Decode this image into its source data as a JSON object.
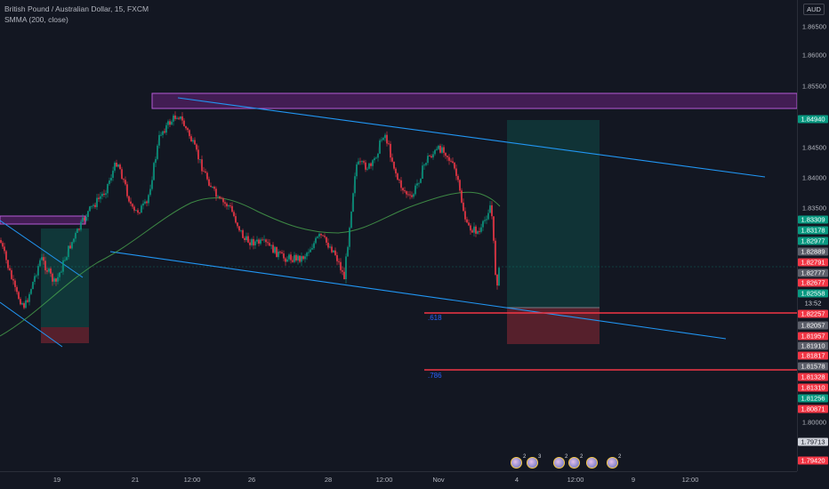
{
  "legend": {
    "symbol": "British Pound / Australian Dollar, 15, FXCM",
    "indicator": "SMMA (200, close)"
  },
  "price_axis": {
    "currency": "AUD",
    "ticks": [
      "1.86500",
      "1.86000",
      "1.85500",
      "1.84500",
      "1.84000",
      "1.83500",
      "1.80000"
    ]
  },
  "price_tags": [
    {
      "value": "1.84940",
      "color": "green"
    },
    {
      "value": "1.83309",
      "color": "green"
    },
    {
      "value": "1.83178",
      "color": "green"
    },
    {
      "value": "1.82977",
      "color": "green"
    },
    {
      "value": "1.82889",
      "color": "gray"
    },
    {
      "value": "1.82791",
      "color": "red"
    },
    {
      "value": "1.82777",
      "color": "gray"
    },
    {
      "value": "1.82677",
      "color": "red"
    },
    {
      "value": "1.82558",
      "color": "green"
    },
    {
      "value": "13:52",
      "color": "dark"
    },
    {
      "value": "1.82257",
      "color": "red"
    },
    {
      "value": "1.82057",
      "color": "gray"
    },
    {
      "value": "1.81957",
      "color": "red"
    },
    {
      "value": "1.81910",
      "color": "gray"
    },
    {
      "value": "1.81817",
      "color": "red"
    },
    {
      "value": "1.81578",
      "color": "gray"
    },
    {
      "value": "1.81328",
      "color": "red"
    },
    {
      "value": "1.81310",
      "color": "red"
    },
    {
      "value": "1.81256",
      "color": "green"
    },
    {
      "value": "1.80871",
      "color": "red"
    },
    {
      "value": "1.79713",
      "color": "white"
    },
    {
      "value": "1.79420",
      "color": "red"
    }
  ],
  "time_axis": {
    "labels": [
      "19",
      "21",
      "12:00",
      "26",
      "28",
      "12:00",
      "Nov",
      "4",
      "12:00",
      "9",
      "12:00"
    ]
  },
  "fib_labels": [
    ".618",
    ".786"
  ],
  "events": [
    {
      "count": "2"
    },
    {
      "count": "3"
    },
    {
      "count": "2"
    },
    {
      "count": "2"
    },
    {
      "count": ""
    },
    {
      "count": "2"
    }
  ],
  "colors": {
    "background": "#131722",
    "candle_up": "#089981",
    "candle_down": "#f23645",
    "channel": "#2196f3",
    "zone": "#9c27b0",
    "smma": "#4caf50"
  }
}
